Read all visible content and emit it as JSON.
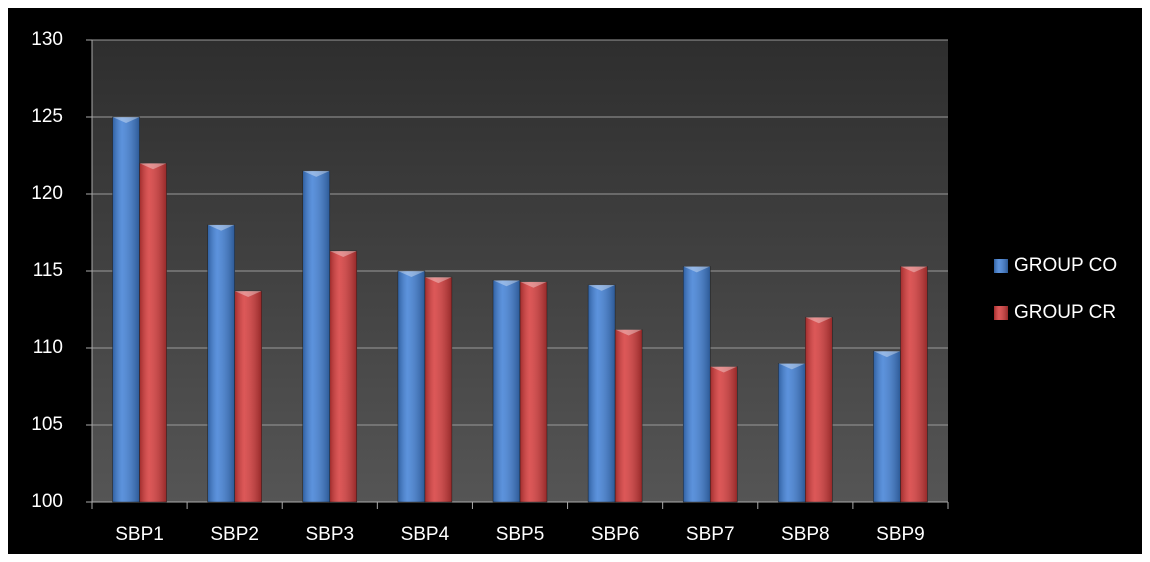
{
  "chart_data": {
    "type": "bar",
    "categories": [
      "SBP1",
      "SBP2",
      "SBP3",
      "SBP4",
      "SBP5",
      "SBP6",
      "SBP7",
      "SBP8",
      "SBP9"
    ],
    "series": [
      {
        "name": "GROUP CO",
        "color": "#3f7fd6",
        "values": [
          125,
          118,
          121.5,
          115,
          114.4,
          114.1,
          115.3,
          109,
          109.8
        ]
      },
      {
        "name": "GROUP CR",
        "color": "#d63a3a",
        "values": [
          122,
          113.7,
          116.3,
          114.6,
          114.3,
          111.2,
          108.8,
          112,
          115.3
        ]
      }
    ],
    "ylim": [
      100,
      130
    ],
    "yticks": [
      100,
      105,
      110,
      115,
      120,
      125,
      130
    ],
    "grid": true,
    "legend": "right"
  }
}
